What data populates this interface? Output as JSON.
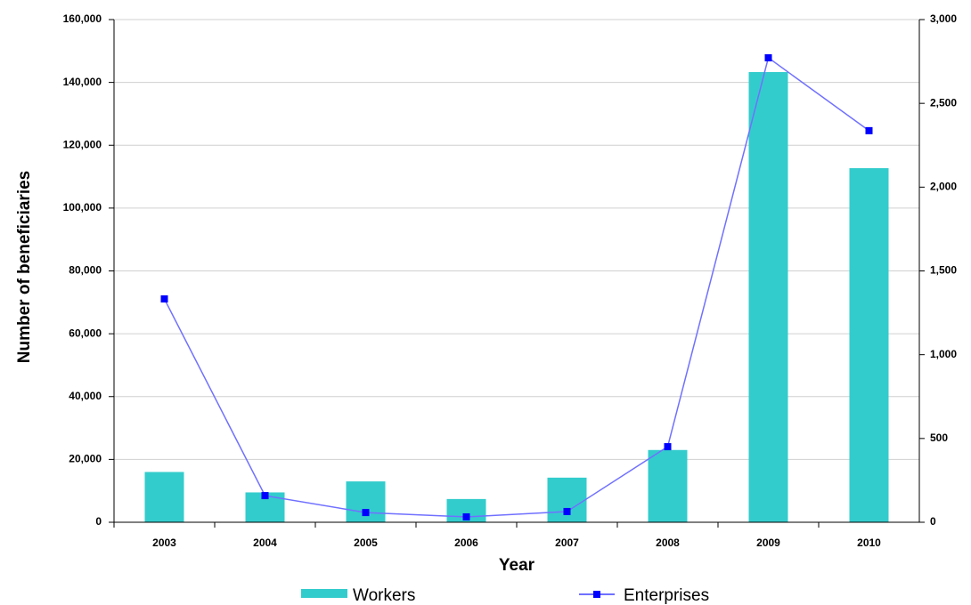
{
  "chart_data": {
    "type": "bar-line",
    "x_label": "Year",
    "y_label": "Number of beneficiaries",
    "categories": [
      "2003",
      "2004",
      "2005",
      "2006",
      "2007",
      "2008",
      "2009",
      "2010"
    ],
    "series": [
      {
        "name": "Workers",
        "type": "bar",
        "color": "#33cccc",
        "values": [
          16000,
          9500,
          13000,
          7400,
          14200,
          23000,
          143300,
          112700
        ]
      },
      {
        "name": "Enterprises",
        "type": "line",
        "axis": "y2",
        "color": "#0000ff",
        "values": [
          1333,
          159,
          58,
          32,
          64,
          451,
          2772,
          2337
        ]
      }
    ],
    "ylim": [
      0,
      160000
    ],
    "yticks": [
      0,
      {
        "value": 20000,
        "label": "20,000"
      },
      {
        "value": 40000,
        "label": "40,000"
      },
      {
        "value": 60000,
        "label": "60,000"
      },
      {
        "value": 80000,
        "label": "80,000"
      },
      {
        "value": 100000,
        "label": "100,000"
      },
      {
        "value": 120000,
        "label": "120,000"
      },
      {
        "value": 140000,
        "label": "140,000"
      },
      {
        "value": 160000,
        "label": "160,000"
      }
    ],
    "y2lim": [
      0,
      3000
    ],
    "y2ticks": [
      0,
      500,
      {
        "value": 1000,
        "label": "1,000"
      },
      {
        "value": 1500,
        "label": "1,500"
      },
      {
        "value": 2000,
        "label": "2,000"
      },
      {
        "value": 2500,
        "label": "2,500"
      },
      {
        "value": 3000,
        "label": "3,000"
      }
    ],
    "grid": true,
    "legend": "bottom"
  }
}
